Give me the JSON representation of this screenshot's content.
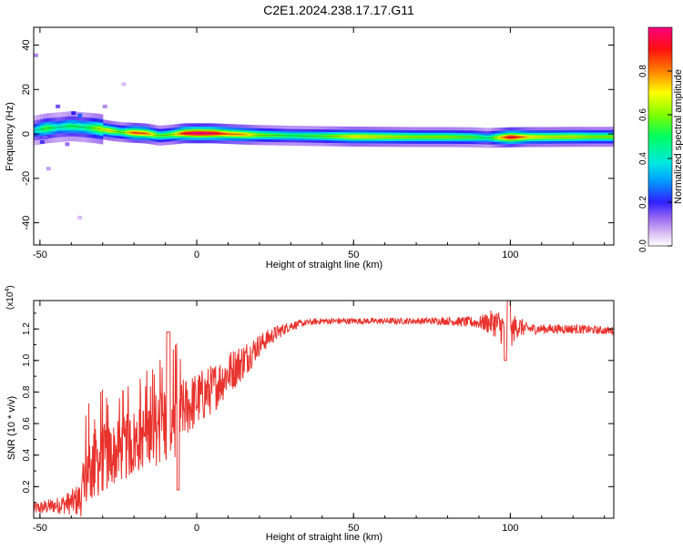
{
  "title": "C2E1.2024.238.17.17.G11",
  "chart_data": [
    {
      "type": "heatmap",
      "xlabel": "Height of straight line (km)",
      "ylabel": "Frequency (Hz)",
      "xlim": [
        -52,
        133
      ],
      "ylim": [
        -50,
        48
      ],
      "xticks": [
        -50,
        0,
        50,
        100
      ],
      "yticks": [
        -40,
        -20,
        0,
        20,
        40
      ],
      "colorbar": {
        "label": "Normalized spectral amplitude",
        "range": [
          0,
          1
        ],
        "ticks": [
          0,
          0.2,
          0.4,
          0.6,
          0.8
        ]
      },
      "track_points": [
        {
          "x": -52,
          "y": 1.5,
          "amp": 0.35
        },
        {
          "x": -48,
          "y": 2.5,
          "amp": 0.55
        },
        {
          "x": -44,
          "y": 3.0,
          "amp": 0.4
        },
        {
          "x": -40,
          "y": 3.5,
          "amp": 0.5
        },
        {
          "x": -36,
          "y": 3.0,
          "amp": 0.45
        },
        {
          "x": -32,
          "y": 2.5,
          "amp": 0.6
        },
        {
          "x": -28,
          "y": 1.5,
          "amp": 0.7
        },
        {
          "x": -24,
          "y": 0.8,
          "amp": 0.55
        },
        {
          "x": -20,
          "y": 0.5,
          "amp": 0.85
        },
        {
          "x": -16,
          "y": 0.2,
          "amp": 0.8
        },
        {
          "x": -12,
          "y": -0.8,
          "amp": 0.55
        },
        {
          "x": -8,
          "y": -0.3,
          "amp": 0.6
        },
        {
          "x": -4,
          "y": 0.3,
          "amp": 0.9
        },
        {
          "x": 0,
          "y": 0.3,
          "amp": 1.0
        },
        {
          "x": 5,
          "y": 0.3,
          "amp": 0.95
        },
        {
          "x": 10,
          "y": 0.0,
          "amp": 0.8
        },
        {
          "x": 15,
          "y": -0.3,
          "amp": 0.75
        },
        {
          "x": 20,
          "y": -0.5,
          "amp": 0.6
        },
        {
          "x": 30,
          "y": -0.8,
          "amp": 0.5
        },
        {
          "x": 40,
          "y": -1.0,
          "amp": 0.55
        },
        {
          "x": 50,
          "y": -1.2,
          "amp": 0.7
        },
        {
          "x": 60,
          "y": -1.3,
          "amp": 0.65
        },
        {
          "x": 70,
          "y": -1.4,
          "amp": 0.6
        },
        {
          "x": 80,
          "y": -1.4,
          "amp": 0.6
        },
        {
          "x": 88,
          "y": -1.5,
          "amp": 0.55
        },
        {
          "x": 93,
          "y": -1.8,
          "amp": 0.45
        },
        {
          "x": 100,
          "y": -1.5,
          "amp": 0.95
        },
        {
          "x": 106,
          "y": -1.4,
          "amp": 0.7
        },
        {
          "x": 112,
          "y": -1.4,
          "amp": 0.65
        },
        {
          "x": 120,
          "y": -1.3,
          "amp": 0.65
        },
        {
          "x": 126,
          "y": -1.3,
          "amp": 0.6
        },
        {
          "x": 133,
          "y": -1.3,
          "amp": 0.6
        }
      ]
    },
    {
      "type": "line",
      "xlabel": "Height of straight line (km)",
      "ylabel": "SNR (10 * v/v)",
      "multiplier_base": "(x10",
      "multiplier_exp": "4",
      "multiplier_close": ")",
      "xlim": [
        -52,
        133
      ],
      "ylim": [
        0,
        13800
      ],
      "xticks": [
        -50,
        0,
        50,
        100
      ],
      "yticks": [
        0.2,
        0.4,
        0.6,
        0.8,
        1.0,
        1.2
      ],
      "series_color": "#e8322c",
      "envelope": {
        "x": [
          -52,
          -45,
          -40,
          -37,
          -35,
          -30,
          -25,
          -20,
          -15,
          -10,
          -7,
          -5,
          0,
          5,
          10,
          15,
          20,
          25,
          30,
          35,
          40,
          50,
          60,
          70,
          80,
          90,
          95,
          98,
          100,
          102,
          105,
          110,
          120,
          130,
          133
        ],
        "base": [
          600,
          800,
          1000,
          1200,
          3000,
          3800,
          4200,
          4800,
          5500,
          6000,
          6300,
          6800,
          7500,
          8200,
          9200,
          10000,
          11000,
          11700,
          12200,
          12400,
          12500,
          12500,
          12500,
          12500,
          12500,
          12400,
          12400,
          12000,
          11700,
          12200,
          12000,
          12000,
          12000,
          11900,
          11900
        ],
        "amp": [
          400,
          500,
          800,
          1200,
          2500,
          2200,
          2000,
          2200,
          2000,
          3000,
          2500,
          2000,
          1800,
          1600,
          1400,
          1200,
          700,
          500,
          300,
          200,
          200,
          200,
          200,
          200,
          250,
          400,
          900,
          1200,
          1000,
          800,
          400,
          300,
          300,
          250,
          250
        ]
      }
    }
  ]
}
